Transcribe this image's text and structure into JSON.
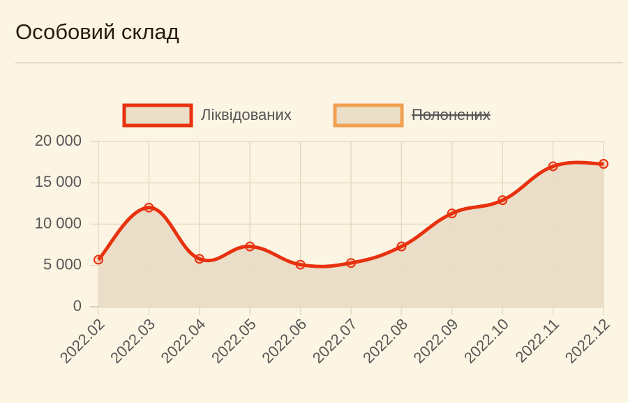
{
  "chart_data": {
    "type": "line",
    "title": "Особовий склад",
    "categories": [
      "2022.02",
      "2022.03",
      "2022.04",
      "2022.05",
      "2022.06",
      "2022.07",
      "2022.08",
      "2022.09",
      "2022.10",
      "2022.11",
      "2022.12"
    ],
    "series": [
      {
        "name": "Ліквідованих",
        "color": "#e8310e",
        "values": [
          5700,
          12000,
          5800,
          7300,
          5100,
          5300,
          7300,
          11300,
          12900,
          17000,
          17300
        ]
      },
      {
        "name": "Полонених",
        "color": "#f0a050",
        "hidden": true
      }
    ],
    "ylim": [
      0,
      20000
    ],
    "yticks": [
      0,
      {
        "value": 5000,
        "label": "5 000"
      },
      {
        "value": 10000,
        "label": "10 000"
      },
      {
        "value": 15000,
        "label": "15 000"
      },
      {
        "value": 20000,
        "label": "20 000"
      }
    ],
    "grid": true
  }
}
